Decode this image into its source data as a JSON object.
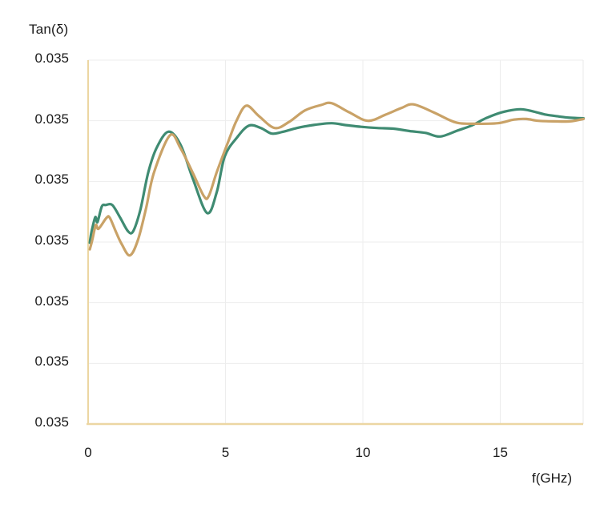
{
  "title": "Tan(δ)",
  "x_axis": {
    "label": "f(GHz)",
    "tick_labels": [
      "0",
      "5",
      "10",
      "15"
    ],
    "tick_values": [
      0,
      5,
      10,
      15
    ]
  },
  "y_axis": {
    "tick_labels": [
      "0.035",
      "0.035",
      "0.035",
      "0.035",
      "0.035",
      "0.035",
      "0.035"
    ]
  },
  "colors": {
    "teal_line": "#3f8b72",
    "tan_line": "#c9a267",
    "axis": "#ecd6a2",
    "gridline": "#ededed",
    "right_border": "#e8e8e8",
    "text": "#1a1a1a",
    "background": "#ffffff"
  },
  "chart_data": {
    "type": "line",
    "title": "Tan(δ)",
    "xlabel": "f(GHz)",
    "ylabel": "Tan(δ)",
    "x_range": [
      0,
      18
    ],
    "x_ticks": [
      0,
      5,
      10,
      15
    ],
    "y_tick_labels": [
      "0.035",
      "0.035",
      "0.035",
      "0.035",
      "0.035",
      "0.035",
      "0.035"
    ],
    "y_axis_encoding": "y values are in gridline units: 0 = bottom axis, 6 = top gridline; every gridline is labeled 0.035 on screen",
    "grid": true,
    "legend": false,
    "series": [
      {
        "name": "teal-line",
        "color": "#3f8b72",
        "points": [
          [
            0.06,
            2.99
          ],
          [
            0.12,
            3.16
          ],
          [
            0.26,
            3.41
          ],
          [
            0.34,
            3.33
          ],
          [
            0.5,
            3.59
          ],
          [
            0.64,
            3.61
          ],
          [
            0.88,
            3.61
          ],
          [
            1.17,
            3.4
          ],
          [
            1.45,
            3.18
          ],
          [
            1.64,
            3.18
          ],
          [
            1.9,
            3.53
          ],
          [
            2.19,
            4.15
          ],
          [
            2.49,
            4.55
          ],
          [
            2.92,
            4.82
          ],
          [
            3.36,
            4.61
          ],
          [
            3.8,
            4.06
          ],
          [
            4.33,
            3.48
          ],
          [
            4.68,
            3.82
          ],
          [
            4.97,
            4.41
          ],
          [
            5.41,
            4.72
          ],
          [
            5.85,
            4.92
          ],
          [
            6.29,
            4.88
          ],
          [
            6.67,
            4.79
          ],
          [
            7.02,
            4.81
          ],
          [
            7.6,
            4.88
          ],
          [
            8.19,
            4.93
          ],
          [
            8.86,
            4.96
          ],
          [
            9.36,
            4.93
          ],
          [
            9.94,
            4.9
          ],
          [
            10.53,
            4.88
          ],
          [
            11.11,
            4.87
          ],
          [
            11.7,
            4.83
          ],
          [
            12.28,
            4.8
          ],
          [
            12.81,
            4.74
          ],
          [
            13.45,
            4.84
          ],
          [
            13.95,
            4.92
          ],
          [
            14.47,
            5.04
          ],
          [
            15.06,
            5.14
          ],
          [
            15.73,
            5.19
          ],
          [
            16.23,
            5.15
          ],
          [
            16.67,
            5.1
          ],
          [
            17.16,
            5.07
          ],
          [
            17.54,
            5.05
          ],
          [
            18.03,
            5.04
          ]
        ]
      },
      {
        "name": "tan-line",
        "color": "#c9a267",
        "points": [
          [
            0.06,
            2.88
          ],
          [
            0.15,
            3.03
          ],
          [
            0.28,
            3.28
          ],
          [
            0.38,
            3.22
          ],
          [
            0.67,
            3.4
          ],
          [
            0.79,
            3.4
          ],
          [
            1.02,
            3.16
          ],
          [
            1.23,
            2.96
          ],
          [
            1.52,
            2.78
          ],
          [
            1.81,
            3.03
          ],
          [
            2.11,
            3.56
          ],
          [
            2.4,
            4.15
          ],
          [
            2.98,
            4.76
          ],
          [
            3.36,
            4.55
          ],
          [
            3.8,
            4.15
          ],
          [
            4.21,
            3.76
          ],
          [
            4.39,
            3.76
          ],
          [
            4.68,
            4.15
          ],
          [
            5.12,
            4.68
          ],
          [
            5.41,
            5.01
          ],
          [
            5.76,
            5.25
          ],
          [
            6.21,
            5.08
          ],
          [
            6.79,
            4.88
          ],
          [
            7.31,
            4.98
          ],
          [
            7.89,
            5.17
          ],
          [
            8.48,
            5.26
          ],
          [
            8.86,
            5.29
          ],
          [
            9.5,
            5.14
          ],
          [
            10.18,
            5.0
          ],
          [
            10.82,
            5.1
          ],
          [
            11.4,
            5.21
          ],
          [
            11.84,
            5.27
          ],
          [
            12.57,
            5.14
          ],
          [
            13.16,
            5.01
          ],
          [
            13.51,
            4.96
          ],
          [
            14.04,
            4.95
          ],
          [
            14.91,
            4.96
          ],
          [
            15.5,
            5.02
          ],
          [
            15.94,
            5.03
          ],
          [
            16.38,
            5.0
          ],
          [
            16.96,
            4.99
          ],
          [
            17.54,
            4.99
          ],
          [
            18.03,
            5.03
          ]
        ]
      }
    ]
  }
}
